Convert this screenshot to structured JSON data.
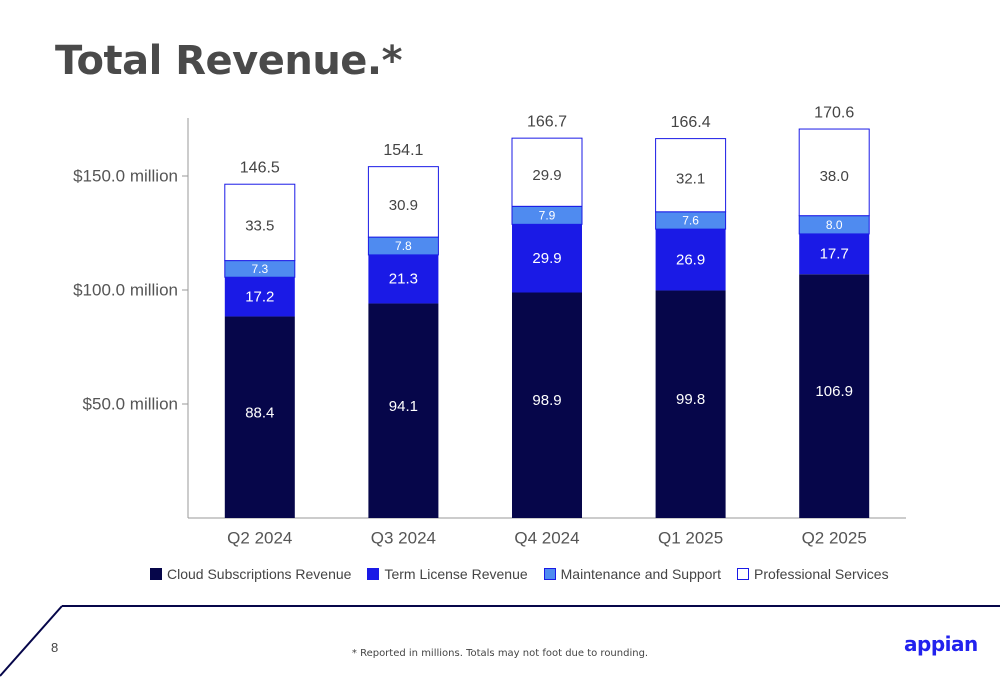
{
  "title": "Total Revenue.*",
  "page_number": "8",
  "footnote": "* Reported in millions. Totals may not foot due to rounding.",
  "logo_text": "appian",
  "colors": {
    "cloud": "#06064a",
    "term": "#1a1ae6",
    "maintenance": "#4f8bf0",
    "professional": "#ffffff",
    "professional_border": "#1a1ae6",
    "accent_line": "#06064a"
  },
  "legend": {
    "cloud": "Cloud Subscriptions Revenue",
    "term": "Term License Revenue",
    "maintenance": "Maintenance and Support",
    "professional": "Professional Services"
  },
  "chart_data": {
    "type": "bar",
    "stacked": true,
    "categories": [
      "Q2 2024",
      "Q3 2024",
      "Q4 2024",
      "Q1 2025",
      "Q2 2025"
    ],
    "series": [
      {
        "key": "cloud",
        "name": "Cloud Subscriptions Revenue",
        "values": [
          88.4,
          94.1,
          98.9,
          99.8,
          106.9
        ],
        "labels": [
          "88.4",
          "94.1",
          "98.9",
          "99.8",
          "106.9"
        ]
      },
      {
        "key": "term",
        "name": "Term License Revenue",
        "values": [
          17.2,
          21.3,
          29.9,
          26.9,
          17.7
        ],
        "labels": [
          "17.2",
          "21.3",
          "29.9",
          "26.9",
          "17.7"
        ]
      },
      {
        "key": "maintenance",
        "name": "Maintenance and Support",
        "values": [
          7.3,
          7.8,
          7.9,
          7.6,
          8.0
        ],
        "labels": [
          "7.3",
          "7.8",
          "7.9",
          "7.6",
          "8.0"
        ]
      },
      {
        "key": "professional",
        "name": "Professional Services",
        "values": [
          33.5,
          30.9,
          29.9,
          32.1,
          38.0
        ],
        "labels": [
          "33.5",
          "30.9",
          "29.9",
          "32.1",
          "38.0"
        ]
      }
    ],
    "totals": [
      "146.5",
      "154.1",
      "166.7",
      "166.4",
      "170.6"
    ],
    "y_ticks": [
      {
        "value": 50,
        "label": "$50.0 million"
      },
      {
        "value": 100,
        "label": "$100.0 million"
      },
      {
        "value": 150,
        "label": "$150.0 million"
      }
    ],
    "ylim": [
      0,
      175
    ],
    "grid": false,
    "legend_position": "bottom"
  }
}
